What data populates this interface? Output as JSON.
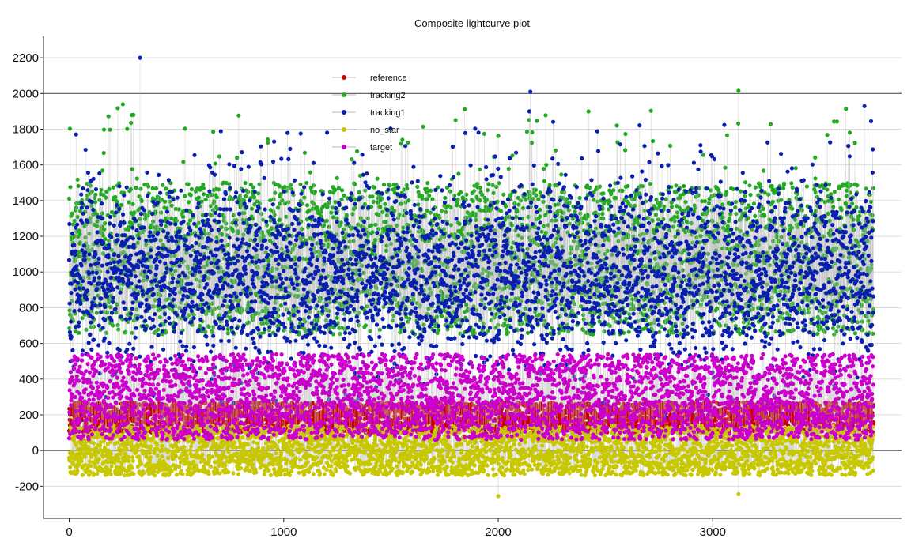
{
  "chart_data": {
    "type": "scatter",
    "title": "Composite lightcurve plot",
    "xlabel": "",
    "ylabel": "",
    "xlim": [
      -120,
      3880
    ],
    "ylim": [
      -380,
      2320
    ],
    "x_ticks": [
      0,
      1000,
      2000,
      3000
    ],
    "y_ticks": [
      -200,
      0,
      200,
      400,
      600,
      800,
      1000,
      1200,
      1400,
      1600,
      1800,
      2000,
      2200
    ],
    "grid": true,
    "legend_position": "top-center",
    "point_count_per_series": 3750,
    "series": [
      {
        "name": "reference",
        "color": "#cc0000",
        "typical_range": [
          80,
          280
        ]
      },
      {
        "name": "tracking2",
        "color": "#22aa22",
        "typical_range": [
          500,
          1750
        ],
        "max": 2020
      },
      {
        "name": "tracking1",
        "color": "#0a1fb0",
        "typical_range": [
          450,
          1500
        ],
        "max": 2200
      },
      {
        "name": "no_star",
        "color": "#c8c800",
        "typical_range": [
          -200,
          160
        ]
      },
      {
        "name": "target",
        "color": "#cc00cc",
        "typical_range": [
          40,
          560
        ]
      }
    ],
    "connector_color": "#b8b8b8",
    "highlighted_lines": [
      0,
      2000
    ]
  }
}
